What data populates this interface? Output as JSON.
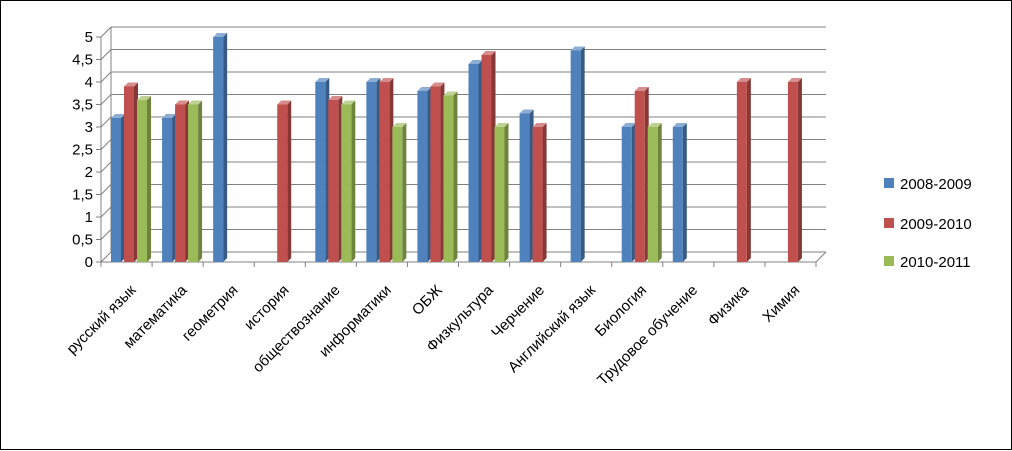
{
  "chart_data": {
    "type": "bar",
    "categories": [
      "русский язык",
      "математика",
      "геометрия",
      "история",
      "обществознание",
      "информатики",
      "ОБЖ",
      "Физкультура",
      "Черчение",
      "Английский язык",
      "Биология",
      "Трудовое обучение",
      "Физика",
      "Химия"
    ],
    "series": [
      {
        "name": "2008-2009",
        "color": "#4f81bd",
        "values": [
          3.2,
          3.2,
          5,
          null,
          4,
          4,
          3.8,
          4.4,
          3.3,
          4.7,
          3,
          3,
          null,
          null
        ]
      },
      {
        "name": "2009-2010",
        "color": "#c0504d",
        "values": [
          3.9,
          3.5,
          null,
          3.5,
          3.6,
          4,
          3.9,
          4.6,
          3,
          null,
          3.8,
          null,
          4,
          4
        ]
      },
      {
        "name": "2010-2011",
        "color": "#9bbb59",
        "values": [
          3.6,
          3.5,
          null,
          null,
          3.5,
          3,
          3.7,
          3,
          null,
          null,
          3,
          null,
          null,
          null
        ]
      }
    ],
    "yticks": [
      "0",
      "0,5",
      "1",
      "1,5",
      "2",
      "2,5",
      "3",
      "3,5",
      "4",
      "4,5",
      "5"
    ],
    "ylim": [
      0,
      5
    ],
    "grid": true,
    "legend": "right"
  }
}
